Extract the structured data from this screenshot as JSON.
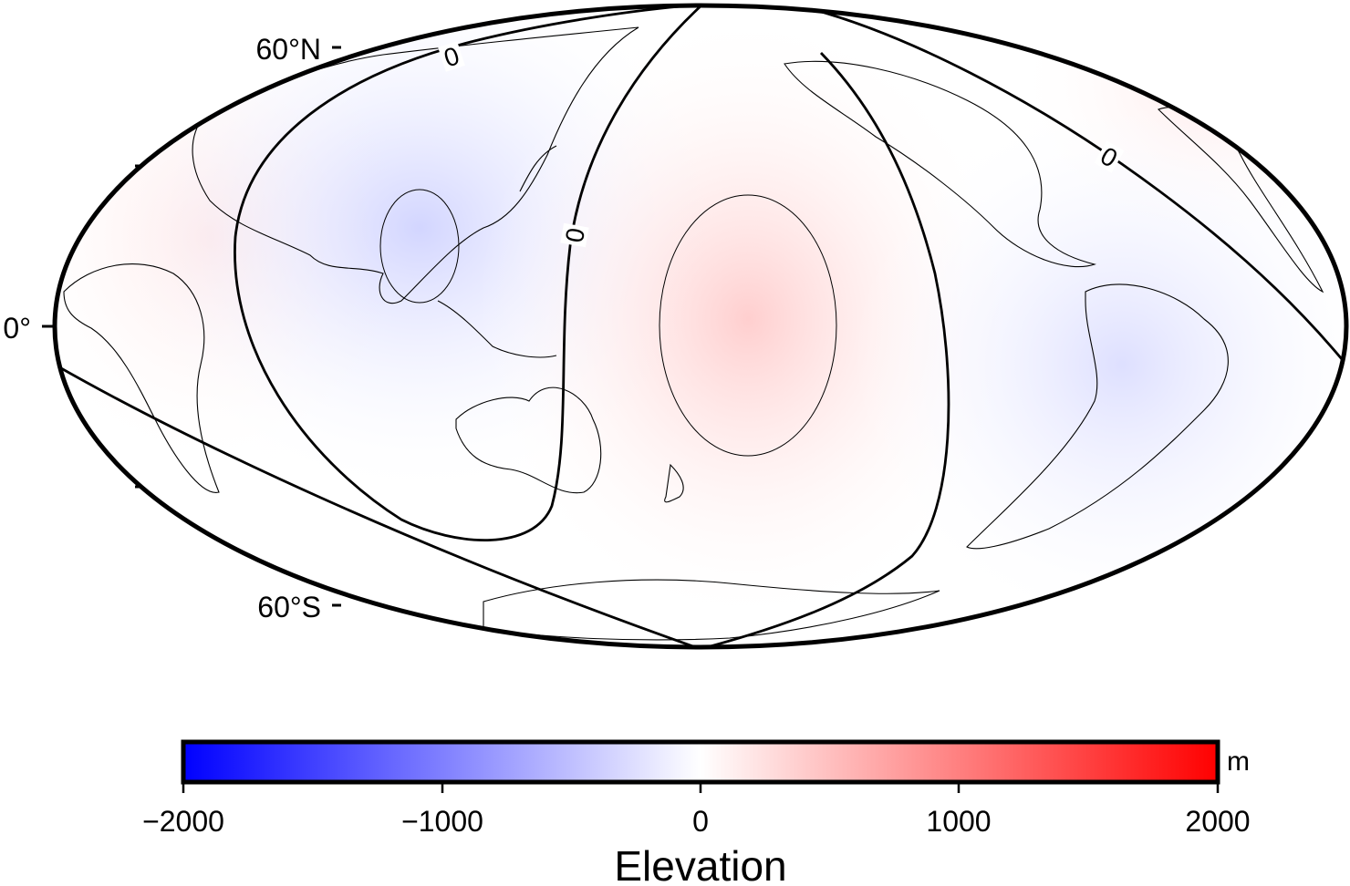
{
  "map": {
    "projection": "Mollweide-like (ellipse), central meridian ~180°",
    "lat_labels": {
      "north": "60°N",
      "equator": "0°",
      "south": "60°S"
    },
    "contour_labels": [
      "0",
      "0",
      "0"
    ],
    "colors": {
      "ocean_background": "#ffffff",
      "negative_tint": "#d9dcff",
      "positive_tint": "#ffd8d8",
      "coastline": "#000000"
    }
  },
  "colorbar": {
    "label": "Elevation",
    "unit": "m",
    "ticks": [
      "−2000",
      "−1000",
      "0",
      "1000",
      "2000"
    ],
    "range": [
      -2000,
      2000
    ],
    "colors": {
      "min": "#0000ff",
      "mid": "#ffffff",
      "max": "#ff0000"
    }
  }
}
